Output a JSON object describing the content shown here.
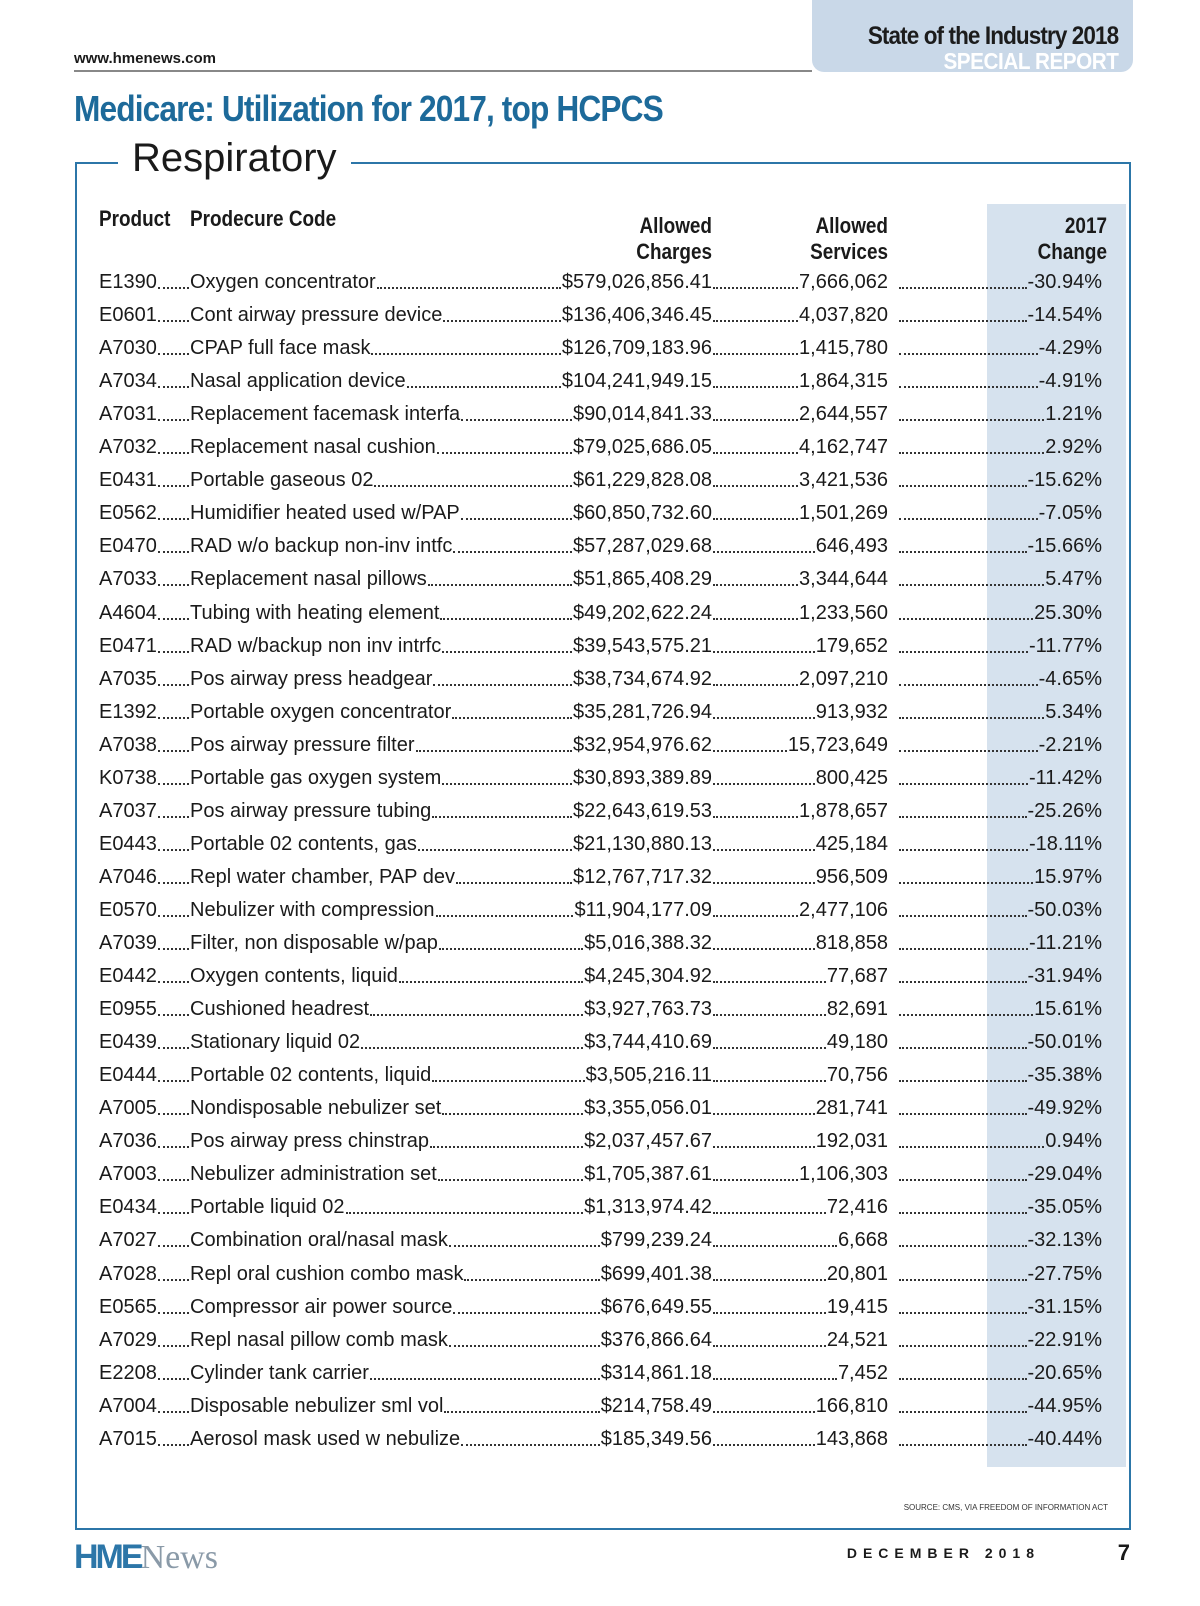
{
  "header": {
    "url": "www.hmenews.com",
    "publication": "State of the Industry 2018",
    "label": "SPECIAL REPORT"
  },
  "title": "Medicare: Utilization for 2017, top HCPCS",
  "section": "Respiratory",
  "table": {
    "columns": [
      "Product",
      "Prodecure Code",
      "Allowed Charges",
      "Allowed Services",
      "2017 Change"
    ],
    "rows": [
      [
        "E1390",
        "Oxygen concentrator",
        "$579,026,856.41",
        "7,666,062",
        "-30.94%"
      ],
      [
        "E0601",
        "Cont airway pressure device",
        "$136,406,346.45",
        "4,037,820",
        "-14.54%"
      ],
      [
        "A7030",
        "CPAP full face mask",
        "$126,709,183.96",
        "1,415,780",
        "-4.29%"
      ],
      [
        "A7034",
        "Nasal application device",
        "$104,241,949.15",
        "1,864,315",
        "-4.91%"
      ],
      [
        "A7031",
        "Replacement facemask interfa",
        "$90,014,841.33",
        "2,644,557",
        "1.21%"
      ],
      [
        "A7032",
        "Replacement nasal cushion",
        "$79,025,686.05",
        "4,162,747",
        "2.92%"
      ],
      [
        "E0431",
        "Portable gaseous 02",
        "$61,229,828.08",
        "3,421,536",
        "-15.62%"
      ],
      [
        "E0562",
        "Humidifier heated used w/PAP",
        "$60,850,732.60",
        "1,501,269",
        "-7.05%"
      ],
      [
        "E0470",
        "RAD w/o backup non-inv intfc",
        "$57,287,029.68",
        "646,493",
        "-15.66%"
      ],
      [
        "A7033",
        "Replacement nasal pillows",
        "$51,865,408.29",
        "3,344,644",
        "5.47%"
      ],
      [
        "A4604",
        "Tubing with heating element",
        "$49,202,622.24",
        "1,233,560",
        "25.30%"
      ],
      [
        "E0471",
        "RAD w/backup non inv intrfc",
        "$39,543,575.21",
        "179,652",
        "-11.77%"
      ],
      [
        "A7035",
        "Pos airway press headgear",
        "$38,734,674.92",
        "2,097,210",
        "-4.65%"
      ],
      [
        "E1392",
        "Portable oxygen concentrator",
        "$35,281,726.94",
        "913,932",
        "5.34%"
      ],
      [
        "A7038",
        "Pos airway pressure filter",
        "$32,954,976.62",
        "15,723,649",
        "-2.21%"
      ],
      [
        "K0738",
        "Portable gas oxygen system",
        "$30,893,389.89",
        "800,425",
        "-11.42%"
      ],
      [
        "A7037",
        "Pos airway pressure tubing",
        "$22,643,619.53",
        "1,878,657",
        "-25.26%"
      ],
      [
        "E0443",
        "Portable 02 contents, gas",
        "$21,130,880.13",
        "425,184",
        "-18.11%"
      ],
      [
        "A7046",
        "Repl water chamber, PAP dev",
        "$12,767,717.32",
        "956,509",
        "15.97%"
      ],
      [
        "E0570",
        "Nebulizer with compression",
        "$11,904,177.09",
        "2,477,106",
        "-50.03%"
      ],
      [
        "A7039",
        "Filter, non disposable w/pap",
        "$5,016,388.32",
        "818,858",
        "-11.21%"
      ],
      [
        "E0442",
        "Oxygen contents, liquid",
        "$4,245,304.92",
        "77,687",
        "-31.94%"
      ],
      [
        "E0955",
        "Cushioned headrest",
        "$3,927,763.73",
        "82,691",
        "15.61%"
      ],
      [
        "E0439",
        "Stationary liquid 02",
        "$3,744,410.69",
        "49,180",
        "-50.01%"
      ],
      [
        "E0444",
        "Portable 02 contents, liquid",
        "$3,505,216.11",
        "70,756",
        "-35.38%"
      ],
      [
        "A7005",
        "Nondisposable nebulizer set",
        "$3,355,056.01",
        "281,741",
        "-49.92%"
      ],
      [
        "A7036",
        "Pos airway press chinstrap",
        "$2,037,457.67",
        "192,031",
        "0.94%"
      ],
      [
        "A7003",
        "Nebulizer administration set",
        "$1,705,387.61",
        "1,106,303",
        "-29.04%"
      ],
      [
        "E0434",
        "Portable liquid 02",
        "$1,313,974.42",
        "72,416",
        "-35.05%"
      ],
      [
        "A7027",
        "Combination oral/nasal mask",
        "$799,239.24",
        "6,668",
        "-32.13%"
      ],
      [
        "A7028",
        "Repl oral cushion combo mask",
        "$699,401.38",
        "20,801",
        "-27.75%"
      ],
      [
        "E0565",
        "Compressor air power source",
        "$676,649.55",
        "19,415",
        "-31.15%"
      ],
      [
        "A7029",
        "Repl nasal pillow comb mask",
        "$376,866.64",
        "24,521",
        "-22.91%"
      ],
      [
        "E2208",
        "Cylinder tank carrier",
        "$314,861.18",
        "7,452",
        "-20.65%"
      ],
      [
        "A7004",
        "Disposable nebulizer sml vol",
        "$214,758.49",
        "166,810",
        "-44.95%"
      ],
      [
        "A7015",
        "Aerosol mask used w nebulize",
        "$185,349.56",
        "143,868",
        "-40.44%"
      ]
    ]
  },
  "source": "SOURCE: CMS, VIA FREEDOM OF INFORMATION ACT",
  "footer": {
    "logo_main": "HME",
    "logo_tail": "News",
    "issue": "DECEMBER 2018",
    "page": "7"
  }
}
